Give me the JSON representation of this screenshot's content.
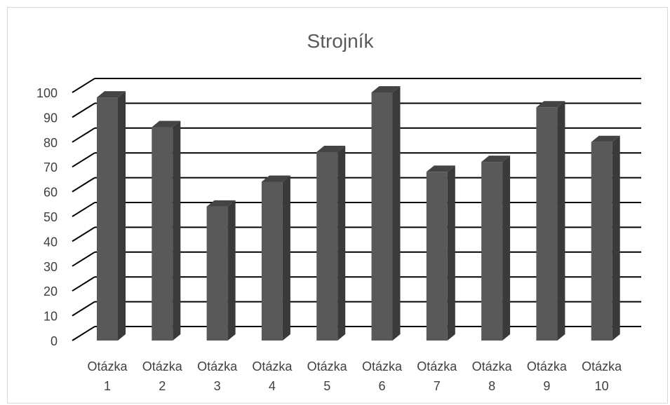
{
  "chart_data": {
    "type": "bar",
    "title": "Strojník",
    "categories": [
      "Otázka 1",
      "Otázka 2",
      "Otázka 3",
      "Otázka 4",
      "Otázka 5",
      "Otázka 6",
      "Otázka 7",
      "Otázka 8",
      "Otázka 9",
      "Otázka 10"
    ],
    "category_lines": [
      [
        "Otázka",
        "1"
      ],
      [
        "Otázka",
        "2"
      ],
      [
        "Otázka",
        "3"
      ],
      [
        "Otázka",
        "4"
      ],
      [
        "Otázka",
        "5"
      ],
      [
        "Otázka",
        "6"
      ],
      [
        "Otázka",
        "7"
      ],
      [
        "Otázka",
        "8"
      ],
      [
        "Otázka",
        "9"
      ],
      [
        "Otázka",
        "10"
      ]
    ],
    "values": [
      98,
      86,
      54,
      64,
      76,
      100,
      68,
      72,
      94,
      80
    ],
    "yticks": [
      "0",
      "10",
      "20",
      "30",
      "40",
      "50",
      "60",
      "70",
      "80",
      "90",
      "100"
    ],
    "ylim": [
      0,
      100
    ],
    "grid": true,
    "style": "3d-column",
    "colors": {
      "bar_front": "#595959",
      "bar_side": "#3a3a3a",
      "bar_top": "#444444",
      "gridline": "#000000"
    }
  }
}
